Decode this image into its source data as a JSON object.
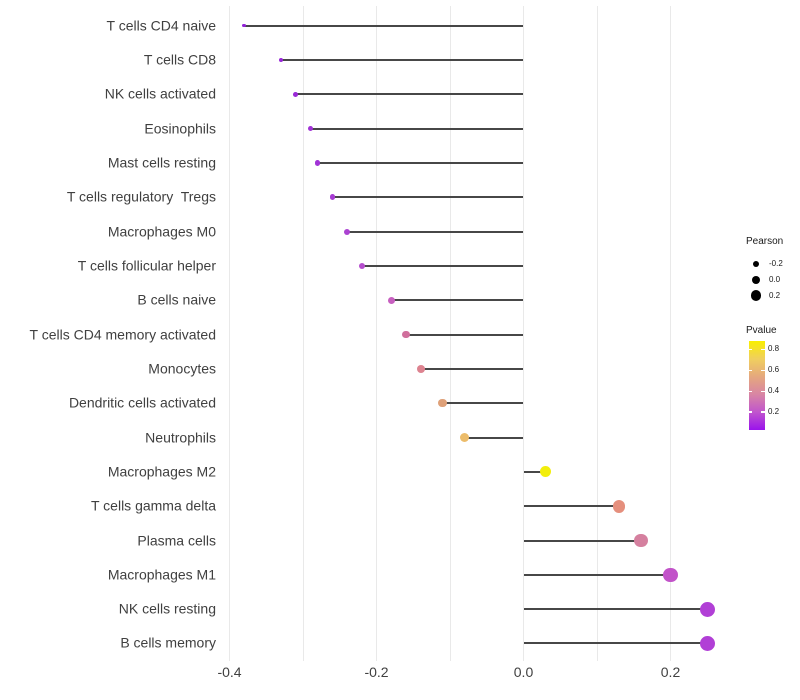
{
  "chart_data": {
    "type": "scatter",
    "variant": "lollipop-horizontal",
    "title": "",
    "xlabel": "",
    "ylabel": "",
    "categories": [
      "T cells CD4 naive",
      "T cells CD8",
      "NK cells activated",
      "Eosinophils",
      "Mast cells resting",
      "T cells regulatory  Tregs",
      "Macrophages M0",
      "T cells follicular helper",
      "B cells naive",
      "T cells CD4 memory activated",
      "Monocytes",
      "Dendritic cells activated",
      "Neutrophils",
      "Macrophages M2",
      "T cells gamma delta",
      "Plasma cells",
      "Macrophages M1",
      "NK cells resting",
      "B cells memory"
    ],
    "series": [
      {
        "name": "Pearson",
        "values": [
          -0.38,
          -0.33,
          -0.31,
          -0.29,
          -0.28,
          -0.26,
          -0.24,
          -0.22,
          -0.18,
          -0.16,
          -0.14,
          -0.11,
          -0.08,
          0.03,
          0.13,
          0.16,
          0.2,
          0.25,
          0.25
        ]
      }
    ],
    "point_colors": [
      "#9222d8",
      "#9827d8",
      "#9a2ad7",
      "#a031d6",
      "#a133d6",
      "#a73cd3",
      "#ab42d1",
      "#b54ecd",
      "#c75fc0",
      "#d06f9c",
      "#dd8390",
      "#dfa179",
      "#ecbc6a",
      "#f2ee0c",
      "#e58f7d",
      "#d5809f",
      "#c253c9",
      "#b13fd6",
      "#b13fd6"
    ],
    "pvalues_approx_from_color": [
      0.1,
      0.1,
      0.1,
      0.12,
      0.12,
      0.15,
      0.16,
      0.22,
      0.3,
      0.36,
      0.44,
      0.55,
      0.62,
      0.85,
      0.47,
      0.42,
      0.28,
      0.17,
      0.17
    ],
    "x_tick_labels": [
      "-0.4",
      "-0.2",
      "0.0",
      "0.2"
    ],
    "x_tick_values": [
      -0.4,
      -0.2,
      0.0,
      0.2
    ],
    "x_gridline_values": [
      -0.4,
      -0.3,
      -0.2,
      -0.1,
      0.0,
      0.1,
      0.2
    ],
    "xlim": [
      -0.42,
      0.285
    ],
    "baseline": 0.0,
    "grid": "vertical-only",
    "legend_position": "right"
  },
  "legend": {
    "pearson": {
      "title": "Pearson",
      "entries": [
        {
          "label": "-0.2",
          "value": -0.2
        },
        {
          "label": "0.0",
          "value": 0.0
        },
        {
          "label": "0.2",
          "value": 0.2
        }
      ],
      "dot_color": "#000000"
    },
    "pvalue": {
      "title": "Pvalue",
      "tick_labels": [
        "0.8",
        "0.6",
        "0.4",
        "0.2"
      ],
      "tick_values": [
        0.8,
        0.6,
        0.4,
        0.2
      ],
      "gradient_colors_top_to_bottom": [
        "#f9ef00",
        "#f0cf5e",
        "#e5a87e",
        "#d885a4",
        "#c055cd",
        "#9a13ec"
      ]
    }
  },
  "colors": {
    "background": "#ffffff",
    "gridline": "#e9e9e9",
    "stem": "#474747",
    "axis_text": "#404040"
  }
}
